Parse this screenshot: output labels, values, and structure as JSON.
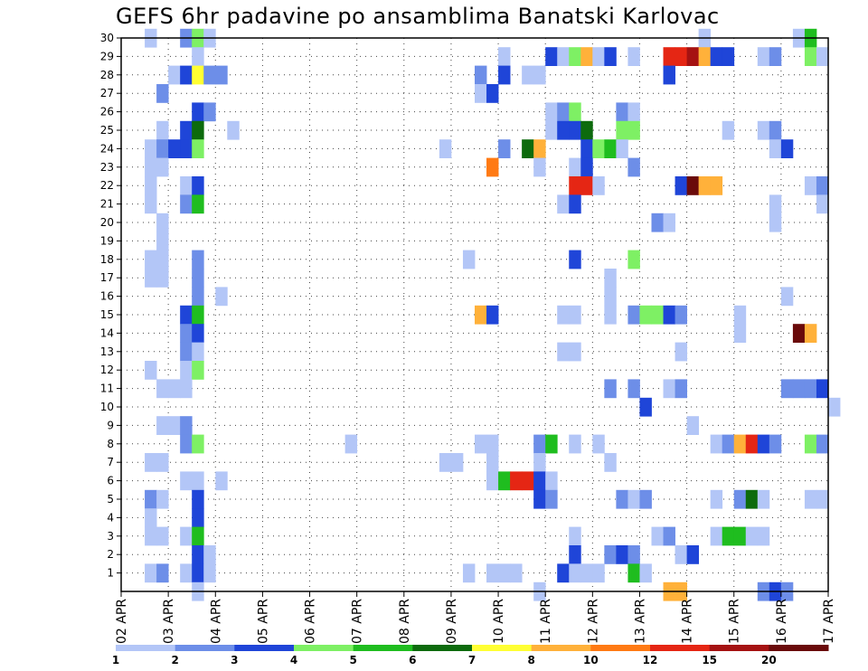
{
  "chart_data": {
    "type": "heatmap",
    "title": "GEFS 6hr padavine po ansamblima Banatski Karlovac",
    "xlabel": "",
    "ylabel": "",
    "y_ticks": [
      "1",
      "2",
      "3",
      "4",
      "5",
      "6",
      "7",
      "8",
      "9",
      "10",
      "11",
      "12",
      "13",
      "14",
      "15",
      "16",
      "17",
      "18",
      "19",
      "20",
      "21",
      "22",
      "23",
      "24",
      "25",
      "26",
      "27",
      "28",
      "29",
      "30"
    ],
    "x_ticks": [
      "02 APR",
      "03 APR",
      "04 APR",
      "05 APR",
      "06 APR",
      "07 APR",
      "08 APR",
      "09 APR",
      "10 APR",
      "11 APR",
      "12 APR",
      "13 APR",
      "14 APR",
      "15 APR",
      "16 APR",
      "17 APR"
    ],
    "x_range_days": [
      0,
      15
    ],
    "y_range_members": [
      0,
      30
    ],
    "time_step_days": 0.25,
    "legend": {
      "labels": [
        "1",
        "2",
        "3",
        "4",
        "5",
        "6",
        "7",
        "8",
        "10",
        "12",
        "15",
        "20"
      ],
      "colors": [
        "#b3c6f7",
        "#6d8ee8",
        "#1f45d8",
        "#7ef064",
        "#1fbd1f",
        "#0d6b0d",
        "#ffff33",
        "#ffb13a",
        "#ff7a14",
        "#e52614",
        "#a51212",
        "#6a0a0a"
      ]
    },
    "cells": [
      {
        "m": 30,
        "t": 0.5,
        "c": 0
      },
      {
        "m": 30,
        "t": 1.25,
        "c": 1
      },
      {
        "m": 30,
        "t": 1.5,
        "c": 3
      },
      {
        "m": 30,
        "t": 1.75,
        "c": 0
      },
      {
        "m": 30,
        "t": 12.25,
        "c": 0
      },
      {
        "m": 30,
        "t": 14.25,
        "c": 0
      },
      {
        "m": 30,
        "t": 14.5,
        "c": 4
      },
      {
        "m": 29,
        "t": 1.5,
        "c": 0
      },
      {
        "m": 29,
        "t": 8,
        "c": 0
      },
      {
        "m": 29,
        "t": 9,
        "c": 2
      },
      {
        "m": 29,
        "t": 9.25,
        "c": 0
      },
      {
        "m": 29,
        "t": 9.5,
        "c": 3
      },
      {
        "m": 29,
        "t": 9.75,
        "c": 7
      },
      {
        "m": 29,
        "t": 10,
        "c": 0
      },
      {
        "m": 29,
        "t": 10.25,
        "c": 2
      },
      {
        "m": 29,
        "t": 10.75,
        "c": 0
      },
      {
        "m": 29,
        "t": 11.5,
        "c": 9
      },
      {
        "m": 29,
        "t": 11.75,
        "c": 9
      },
      {
        "m": 29,
        "t": 12,
        "c": 10
      },
      {
        "m": 29,
        "t": 12.25,
        "c": 7
      },
      {
        "m": 29,
        "t": 12.5,
        "c": 2
      },
      {
        "m": 29,
        "t": 12.75,
        "c": 2
      },
      {
        "m": 29,
        "t": 13.5,
        "c": 0
      },
      {
        "m": 29,
        "t": 13.75,
        "c": 1
      },
      {
        "m": 29,
        "t": 14.5,
        "c": 3
      },
      {
        "m": 29,
        "t": 14.75,
        "c": 0
      },
      {
        "m": 28,
        "t": 1,
        "c": 0
      },
      {
        "m": 28,
        "t": 1.25,
        "c": 2
      },
      {
        "m": 28,
        "t": 1.5,
        "c": 6
      },
      {
        "m": 28,
        "t": 1.75,
        "c": 1
      },
      {
        "m": 28,
        "t": 2,
        "c": 1
      },
      {
        "m": 28,
        "t": 7.5,
        "c": 1
      },
      {
        "m": 28,
        "t": 8,
        "c": 2
      },
      {
        "m": 28,
        "t": 8.5,
        "c": 0
      },
      {
        "m": 28,
        "t": 8.75,
        "c": 0
      },
      {
        "m": 28,
        "t": 11.5,
        "c": 2
      },
      {
        "m": 27,
        "t": 0.75,
        "c": 1
      },
      {
        "m": 27,
        "t": 7.5,
        "c": 0
      },
      {
        "m": 27,
        "t": 7.75,
        "c": 2
      },
      {
        "m": 26,
        "t": 1.5,
        "c": 2
      },
      {
        "m": 26,
        "t": 1.75,
        "c": 1
      },
      {
        "m": 26,
        "t": 9,
        "c": 0
      },
      {
        "m": 26,
        "t": 9.25,
        "c": 1
      },
      {
        "m": 26,
        "t": 9.5,
        "c": 3
      },
      {
        "m": 26,
        "t": 10.5,
        "c": 1
      },
      {
        "m": 26,
        "t": 10.75,
        "c": 0
      },
      {
        "m": 25,
        "t": 0.75,
        "c": 0
      },
      {
        "m": 25,
        "t": 1.25,
        "c": 2
      },
      {
        "m": 25,
        "t": 1.5,
        "c": 5
      },
      {
        "m": 25,
        "t": 2.25,
        "c": 0
      },
      {
        "m": 25,
        "t": 9,
        "c": 0
      },
      {
        "m": 25,
        "t": 9.25,
        "c": 2
      },
      {
        "m": 25,
        "t": 9.5,
        "c": 2
      },
      {
        "m": 25,
        "t": 9.75,
        "c": 5
      },
      {
        "m": 25,
        "t": 10.5,
        "c": 3
      },
      {
        "m": 25,
        "t": 10.75,
        "c": 3
      },
      {
        "m": 25,
        "t": 12.75,
        "c": 0
      },
      {
        "m": 25,
        "t": 13.5,
        "c": 0
      },
      {
        "m": 25,
        "t": 13.75,
        "c": 1
      },
      {
        "m": 24,
        "t": 0.5,
        "c": 0
      },
      {
        "m": 24,
        "t": 0.75,
        "c": 1
      },
      {
        "m": 24,
        "t": 1,
        "c": 2
      },
      {
        "m": 24,
        "t": 1.25,
        "c": 2
      },
      {
        "m": 24,
        "t": 1.5,
        "c": 3
      },
      {
        "m": 24,
        "t": 6.75,
        "c": 0
      },
      {
        "m": 24,
        "t": 8,
        "c": 1
      },
      {
        "m": 24,
        "t": 8.5,
        "c": 5
      },
      {
        "m": 24,
        "t": 8.75,
        "c": 7
      },
      {
        "m": 24,
        "t": 9.75,
        "c": 2
      },
      {
        "m": 24,
        "t": 10,
        "c": 3
      },
      {
        "m": 24,
        "t": 10.25,
        "c": 4
      },
      {
        "m": 24,
        "t": 10.5,
        "c": 0
      },
      {
        "m": 24,
        "t": 13.75,
        "c": 0
      },
      {
        "m": 24,
        "t": 14,
        "c": 2
      },
      {
        "m": 23,
        "t": 0.5,
        "c": 0
      },
      {
        "m": 23,
        "t": 0.75,
        "c": 0
      },
      {
        "m": 23,
        "t": 7.75,
        "c": 8
      },
      {
        "m": 23,
        "t": 8.75,
        "c": 0
      },
      {
        "m": 23,
        "t": 9.5,
        "c": 0
      },
      {
        "m": 23,
        "t": 9.75,
        "c": 2
      },
      {
        "m": 23,
        "t": 10.75,
        "c": 1
      },
      {
        "m": 22,
        "t": 0.5,
        "c": 0
      },
      {
        "m": 22,
        "t": 1.25,
        "c": 0
      },
      {
        "m": 22,
        "t": 1.5,
        "c": 2
      },
      {
        "m": 22,
        "t": 9.5,
        "c": 9
      },
      {
        "m": 22,
        "t": 9.75,
        "c": 9
      },
      {
        "m": 22,
        "t": 10,
        "c": 0
      },
      {
        "m": 22,
        "t": 11.75,
        "c": 2
      },
      {
        "m": 22,
        "t": 12,
        "c": 11
      },
      {
        "m": 22,
        "t": 12.25,
        "c": 7
      },
      {
        "m": 22,
        "t": 12.5,
        "c": 7
      },
      {
        "m": 22,
        "t": 14.5,
        "c": 0
      },
      {
        "m": 22,
        "t": 14.75,
        "c": 1
      },
      {
        "m": 21,
        "t": 0.5,
        "c": 0
      },
      {
        "m": 21,
        "t": 1.25,
        "c": 1
      },
      {
        "m": 21,
        "t": 1.5,
        "c": 4
      },
      {
        "m": 21,
        "t": 9.25,
        "c": 0
      },
      {
        "m": 21,
        "t": 9.5,
        "c": 2
      },
      {
        "m": 21,
        "t": 13.75,
        "c": 0
      },
      {
        "m": 21,
        "t": 14.75,
        "c": 0
      },
      {
        "m": 20,
        "t": 0.75,
        "c": 0
      },
      {
        "m": 20,
        "t": 11.25,
        "c": 1
      },
      {
        "m": 20,
        "t": 11.5,
        "c": 0
      },
      {
        "m": 20,
        "t": 13.75,
        "c": 0
      },
      {
        "m": 19,
        "t": 0.75,
        "c": 0
      },
      {
        "m": 18,
        "t": 0.5,
        "c": 0
      },
      {
        "m": 18,
        "t": 0.75,
        "c": 0
      },
      {
        "m": 18,
        "t": 1.5,
        "c": 1
      },
      {
        "m": 18,
        "t": 7.25,
        "c": 0
      },
      {
        "m": 18,
        "t": 9.5,
        "c": 2
      },
      {
        "m": 18,
        "t": 10.75,
        "c": 3
      },
      {
        "m": 17,
        "t": 0.5,
        "c": 0
      },
      {
        "m": 17,
        "t": 0.75,
        "c": 0
      },
      {
        "m": 17,
        "t": 1.5,
        "c": 1
      },
      {
        "m": 17,
        "t": 10.25,
        "c": 0
      },
      {
        "m": 16,
        "t": 1.5,
        "c": 1
      },
      {
        "m": 16,
        "t": 2,
        "c": 0
      },
      {
        "m": 16,
        "t": 10.25,
        "c": 0
      },
      {
        "m": 16,
        "t": 14,
        "c": 0
      },
      {
        "m": 15,
        "t": 1.25,
        "c": 2
      },
      {
        "m": 15,
        "t": 1.5,
        "c": 4
      },
      {
        "m": 15,
        "t": 7.5,
        "c": 7
      },
      {
        "m": 15,
        "t": 7.75,
        "c": 2
      },
      {
        "m": 15,
        "t": 9.25,
        "c": 0
      },
      {
        "m": 15,
        "t": 9.5,
        "c": 0
      },
      {
        "m": 15,
        "t": 10.25,
        "c": 0
      },
      {
        "m": 15,
        "t": 10.75,
        "c": 1
      },
      {
        "m": 15,
        "t": 11,
        "c": 3
      },
      {
        "m": 15,
        "t": 11.25,
        "c": 3
      },
      {
        "m": 15,
        "t": 11.5,
        "c": 2
      },
      {
        "m": 15,
        "t": 11.75,
        "c": 1
      },
      {
        "m": 15,
        "t": 13,
        "c": 0
      },
      {
        "m": 14,
        "t": 1.25,
        "c": 1
      },
      {
        "m": 14,
        "t": 1.5,
        "c": 2
      },
      {
        "m": 14,
        "t": 13,
        "c": 0
      },
      {
        "m": 14,
        "t": 14.25,
        "c": 11
      },
      {
        "m": 14,
        "t": 14.5,
        "c": 7
      },
      {
        "m": 13,
        "t": 1.25,
        "c": 1
      },
      {
        "m": 13,
        "t": 1.5,
        "c": 0
      },
      {
        "m": 13,
        "t": 9.25,
        "c": 0
      },
      {
        "m": 13,
        "t": 9.5,
        "c": 0
      },
      {
        "m": 13,
        "t": 11.75,
        "c": 0
      },
      {
        "m": 12,
        "t": 0.5,
        "c": 0
      },
      {
        "m": 12,
        "t": 1.25,
        "c": 0
      },
      {
        "m": 12,
        "t": 1.5,
        "c": 3
      },
      {
        "m": 11,
        "t": 0.75,
        "c": 0
      },
      {
        "m": 11,
        "t": 1,
        "c": 0
      },
      {
        "m": 11,
        "t": 1.25,
        "c": 0
      },
      {
        "m": 11,
        "t": 10.25,
        "c": 1
      },
      {
        "m": 11,
        "t": 10.75,
        "c": 1
      },
      {
        "m": 11,
        "t": 11.5,
        "c": 0
      },
      {
        "m": 11,
        "t": 11.75,
        "c": 1
      },
      {
        "m": 11,
        "t": 14,
        "c": 1
      },
      {
        "m": 11,
        "t": 14.25,
        "c": 1
      },
      {
        "m": 11,
        "t": 14.5,
        "c": 1
      },
      {
        "m": 11,
        "t": 14.75,
        "c": 2
      },
      {
        "m": 10,
        "t": 11,
        "c": 2
      },
      {
        "m": 10,
        "t": 15,
        "c": 0
      },
      {
        "m": 9,
        "t": 0.75,
        "c": 0
      },
      {
        "m": 9,
        "t": 1,
        "c": 0
      },
      {
        "m": 9,
        "t": 1.25,
        "c": 1
      },
      {
        "m": 9,
        "t": 12,
        "c": 0
      },
      {
        "m": 8,
        "t": 1.25,
        "c": 1
      },
      {
        "m": 8,
        "t": 1.5,
        "c": 3
      },
      {
        "m": 8,
        "t": 4.75,
        "c": 0
      },
      {
        "m": 8,
        "t": 7.5,
        "c": 0
      },
      {
        "m": 8,
        "t": 7.75,
        "c": 0
      },
      {
        "m": 8,
        "t": 8.75,
        "c": 1
      },
      {
        "m": 8,
        "t": 9,
        "c": 4
      },
      {
        "m": 8,
        "t": 9.5,
        "c": 0
      },
      {
        "m": 8,
        "t": 10,
        "c": 0
      },
      {
        "m": 8,
        "t": 12.5,
        "c": 0
      },
      {
        "m": 8,
        "t": 12.75,
        "c": 1
      },
      {
        "m": 8,
        "t": 13,
        "c": 7
      },
      {
        "m": 8,
        "t": 13.25,
        "c": 9
      },
      {
        "m": 8,
        "t": 13.5,
        "c": 2
      },
      {
        "m": 8,
        "t": 13.75,
        "c": 1
      },
      {
        "m": 8,
        "t": 14.5,
        "c": 3
      },
      {
        "m": 8,
        "t": 14.75,
        "c": 1
      },
      {
        "m": 7,
        "t": 0.5,
        "c": 0
      },
      {
        "m": 7,
        "t": 0.75,
        "c": 0
      },
      {
        "m": 7,
        "t": 6.75,
        "c": 0
      },
      {
        "m": 7,
        "t": 7,
        "c": 0
      },
      {
        "m": 7,
        "t": 7.75,
        "c": 0
      },
      {
        "m": 7,
        "t": 8.75,
        "c": 0
      },
      {
        "m": 7,
        "t": 10.25,
        "c": 0
      },
      {
        "m": 6,
        "t": 1.25,
        "c": 0
      },
      {
        "m": 6,
        "t": 1.5,
        "c": 0
      },
      {
        "m": 6,
        "t": 2,
        "c": 0
      },
      {
        "m": 6,
        "t": 7.75,
        "c": 0
      },
      {
        "m": 6,
        "t": 8,
        "c": 4
      },
      {
        "m": 6,
        "t": 8.25,
        "c": 9
      },
      {
        "m": 6,
        "t": 8.5,
        "c": 9
      },
      {
        "m": 6,
        "t": 8.75,
        "c": 2
      },
      {
        "m": 6,
        "t": 9,
        "c": 0
      },
      {
        "m": 5,
        "t": 0.5,
        "c": 1
      },
      {
        "m": 5,
        "t": 0.75,
        "c": 0
      },
      {
        "m": 5,
        "t": 1.5,
        "c": 2
      },
      {
        "m": 5,
        "t": 8.75,
        "c": 2
      },
      {
        "m": 5,
        "t": 9,
        "c": 1
      },
      {
        "m": 5,
        "t": 10.5,
        "c": 1
      },
      {
        "m": 5,
        "t": 10.75,
        "c": 0
      },
      {
        "m": 5,
        "t": 11,
        "c": 1
      },
      {
        "m": 5,
        "t": 12.5,
        "c": 0
      },
      {
        "m": 5,
        "t": 13,
        "c": 1
      },
      {
        "m": 5,
        "t": 13.25,
        "c": 5
      },
      {
        "m": 5,
        "t": 13.5,
        "c": 0
      },
      {
        "m": 5,
        "t": 14.5,
        "c": 0
      },
      {
        "m": 5,
        "t": 14.75,
        "c": 0
      },
      {
        "m": 4,
        "t": 0.5,
        "c": 0
      },
      {
        "m": 4,
        "t": 1.5,
        "c": 2
      },
      {
        "m": 3,
        "t": 0.5,
        "c": 0
      },
      {
        "m": 3,
        "t": 0.75,
        "c": 0
      },
      {
        "m": 3,
        "t": 1.25,
        "c": 0
      },
      {
        "m": 3,
        "t": 1.5,
        "c": 4
      },
      {
        "m": 3,
        "t": 9.5,
        "c": 0
      },
      {
        "m": 3,
        "t": 11.25,
        "c": 0
      },
      {
        "m": 3,
        "t": 11.5,
        "c": 1
      },
      {
        "m": 3,
        "t": 12.5,
        "c": 0
      },
      {
        "m": 3,
        "t": 12.75,
        "c": 4
      },
      {
        "m": 3,
        "t": 13,
        "c": 4
      },
      {
        "m": 3,
        "t": 13.25,
        "c": 0
      },
      {
        "m": 3,
        "t": 13.5,
        "c": 0
      },
      {
        "m": 2,
        "t": 1.5,
        "c": 2
      },
      {
        "m": 2,
        "t": 1.75,
        "c": 0
      },
      {
        "m": 2,
        "t": 9.5,
        "c": 2
      },
      {
        "m": 2,
        "t": 10.25,
        "c": 1
      },
      {
        "m": 2,
        "t": 10.5,
        "c": 2
      },
      {
        "m": 2,
        "t": 10.75,
        "c": 1
      },
      {
        "m": 2,
        "t": 11.75,
        "c": 0
      },
      {
        "m": 2,
        "t": 12,
        "c": 2
      },
      {
        "m": 1,
        "t": 0.5,
        "c": 0
      },
      {
        "m": 1,
        "t": 0.75,
        "c": 1
      },
      {
        "m": 1,
        "t": 1.25,
        "c": 0
      },
      {
        "m": 1,
        "t": 1.5,
        "c": 2
      },
      {
        "m": 1,
        "t": 1.75,
        "c": 0
      },
      {
        "m": 1,
        "t": 7.25,
        "c": 0
      },
      {
        "m": 1,
        "t": 7.75,
        "c": 0
      },
      {
        "m": 1,
        "t": 8,
        "c": 0
      },
      {
        "m": 1,
        "t": 8.25,
        "c": 0
      },
      {
        "m": 1,
        "t": 9.25,
        "c": 2
      },
      {
        "m": 1,
        "t": 9.5,
        "c": 0
      },
      {
        "m": 1,
        "t": 9.75,
        "c": 0
      },
      {
        "m": 1,
        "t": 10,
        "c": 0
      },
      {
        "m": 1,
        "t": 10.75,
        "c": 4
      },
      {
        "m": 1,
        "t": 11,
        "c": 0
      },
      {
        "m": 0,
        "t": 1.5,
        "c": 0
      },
      {
        "m": 0,
        "t": 8.75,
        "c": 0
      },
      {
        "m": 0,
        "t": 11.5,
        "c": 7
      },
      {
        "m": 0,
        "t": 11.75,
        "c": 7
      },
      {
        "m": 0,
        "t": 13.5,
        "c": 1
      },
      {
        "m": 0,
        "t": 13.75,
        "c": 2
      },
      {
        "m": 0,
        "t": 14,
        "c": 1
      }
    ]
  }
}
